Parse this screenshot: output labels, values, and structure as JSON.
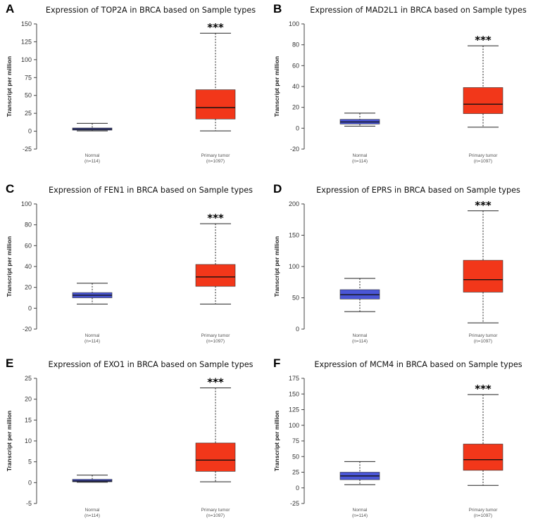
{
  "chart_data": [
    {
      "panel": "A",
      "type": "box",
      "title": "Expression of TOP2A in BRCA based on Sample types",
      "ylabel": "Transcript per million",
      "yticks": [
        -25,
        0,
        25,
        50,
        75,
        100,
        125,
        150
      ],
      "ylim": [
        -25,
        150
      ],
      "categories": [
        "Normal",
        "Primary tumor"
      ],
      "counts": [
        "(n=114)",
        "(n=1097)"
      ],
      "boxes": [
        {
          "min": 0.5,
          "q1": 1.5,
          "median": 3,
          "q3": 4.5,
          "max": 11,
          "color": "#4a56d6"
        },
        {
          "min": 0.5,
          "q1": 17,
          "median": 33,
          "q3": 58,
          "max": 137,
          "color": "#f2371a"
        }
      ],
      "significance": "***"
    },
    {
      "panel": "B",
      "type": "box",
      "title": "Expression of MAD2L1 in BRCA based on Sample types",
      "ylabel": "Transcript per million",
      "yticks": [
        -20,
        0,
        20,
        40,
        60,
        80,
        100
      ],
      "ylim": [
        -20,
        100
      ],
      "categories": [
        "Normal",
        "Primary tumor"
      ],
      "counts": [
        "(n=114)",
        "(n=1097)"
      ],
      "boxes": [
        {
          "min": 2,
          "q1": 4,
          "median": 6,
          "q3": 8.5,
          "max": 14.5,
          "color": "#4a56d6"
        },
        {
          "min": 1,
          "q1": 14,
          "median": 23,
          "q3": 39,
          "max": 79,
          "color": "#f2371a"
        }
      ],
      "significance": "***"
    },
    {
      "panel": "C",
      "type": "box",
      "title": "Expression of FEN1 in BRCA based on Sample types",
      "ylabel": "Transcript per million",
      "yticks": [
        -20,
        0,
        20,
        40,
        60,
        80,
        100
      ],
      "ylim": [
        -20,
        100
      ],
      "categories": [
        "Normal",
        "Primary tumor"
      ],
      "counts": [
        "(n=114)",
        "(n=1097)"
      ],
      "boxes": [
        {
          "min": 4,
          "q1": 10,
          "median": 12.5,
          "q3": 15,
          "max": 24,
          "color": "#4a56d6"
        },
        {
          "min": 4,
          "q1": 21,
          "median": 30,
          "q3": 42,
          "max": 81,
          "color": "#f2371a"
        }
      ],
      "significance": "***"
    },
    {
      "panel": "D",
      "type": "box",
      "title": "Expression of EPRS in BRCA based on Sample types",
      "ylabel": "Transcript per million",
      "yticks": [
        0,
        50,
        100,
        150,
        200
      ],
      "ylim": [
        0,
        200
      ],
      "categories": [
        "Normal",
        "Primary tumor"
      ],
      "counts": [
        "(n=114)",
        "(n=1097)"
      ],
      "boxes": [
        {
          "min": 28,
          "q1": 48,
          "median": 55,
          "q3": 63,
          "max": 81,
          "color": "#4a56d6"
        },
        {
          "min": 10,
          "q1": 59,
          "median": 79,
          "q3": 110,
          "max": 189,
          "color": "#f2371a"
        }
      ],
      "significance": "***"
    },
    {
      "panel": "E",
      "type": "box",
      "title": "Expression of EXO1 in BRCA based on Sample types",
      "ylabel": "Transcript per million",
      "yticks": [
        -5,
        0,
        5,
        10,
        15,
        20,
        25
      ],
      "ylim": [
        -5,
        25
      ],
      "categories": [
        "Normal",
        "Primary tumor"
      ],
      "counts": [
        "(n=114)",
        "(n=1097)"
      ],
      "boxes": [
        {
          "min": 0.1,
          "q1": 0.2,
          "median": 0.4,
          "q3": 0.8,
          "max": 1.8,
          "color": "#4a56d6"
        },
        {
          "min": 0.2,
          "q1": 2.7,
          "median": 5.4,
          "q3": 9.5,
          "max": 22.7,
          "color": "#f2371a"
        }
      ],
      "significance": "***"
    },
    {
      "panel": "F",
      "type": "box",
      "title": "Expression of MCM4 in BRCA based on Sample types",
      "ylabel": "Transcript per million",
      "yticks": [
        -25,
        0,
        25,
        50,
        75,
        100,
        125,
        150,
        175
      ],
      "ylim": [
        -25,
        175
      ],
      "categories": [
        "Normal",
        "Primary tumor"
      ],
      "counts": [
        "(n=114)",
        "(n=1097)"
      ],
      "boxes": [
        {
          "min": 5,
          "q1": 13,
          "median": 19,
          "q3": 25,
          "max": 42,
          "color": "#4a56d6"
        },
        {
          "min": 4,
          "q1": 28,
          "median": 45,
          "q3": 70,
          "max": 149,
          "color": "#f2371a"
        }
      ],
      "significance": "***"
    }
  ]
}
